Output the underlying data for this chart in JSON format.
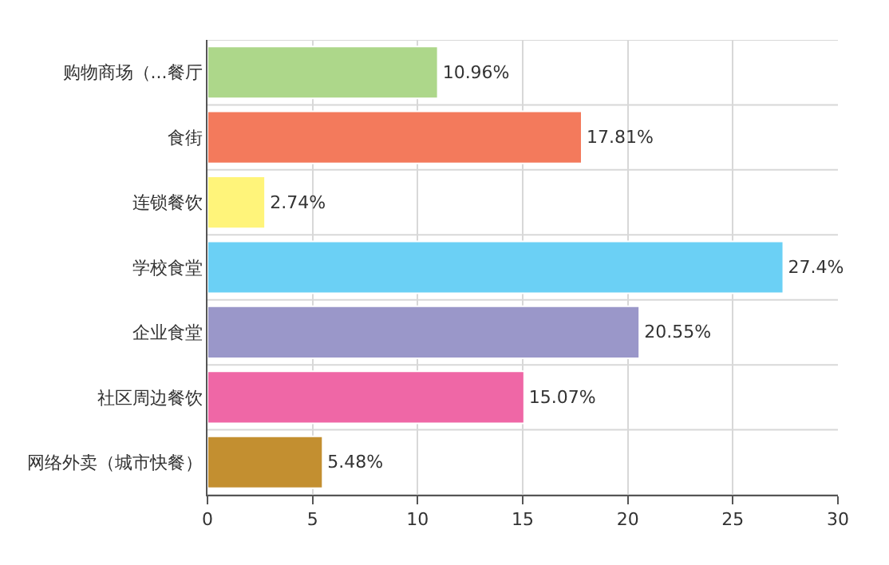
{
  "chart_data": {
    "type": "bar",
    "orientation": "horizontal",
    "categories": [
      "购物商场（...餐厅",
      "食街",
      "连锁餐饮",
      "学校食堂",
      "企业食堂",
      "社区周边餐饮",
      "网络外卖（城市快餐）"
    ],
    "values": [
      10.96,
      17.81,
      2.74,
      27.4,
      20.55,
      15.07,
      5.48
    ],
    "value_labels": [
      "10.96%",
      "17.81%",
      "2.74%",
      "27.4%",
      "20.55%",
      "15.07%",
      "5.48%"
    ],
    "colors": [
      "#add78a",
      "#f37a5c",
      "#fff47a",
      "#6bd0f5",
      "#9a97c9",
      "#ef67a6",
      "#c38f30"
    ],
    "xlim": [
      0,
      30
    ],
    "xticks": [
      0,
      5,
      10,
      15,
      20,
      25,
      30
    ],
    "grid": true
  }
}
